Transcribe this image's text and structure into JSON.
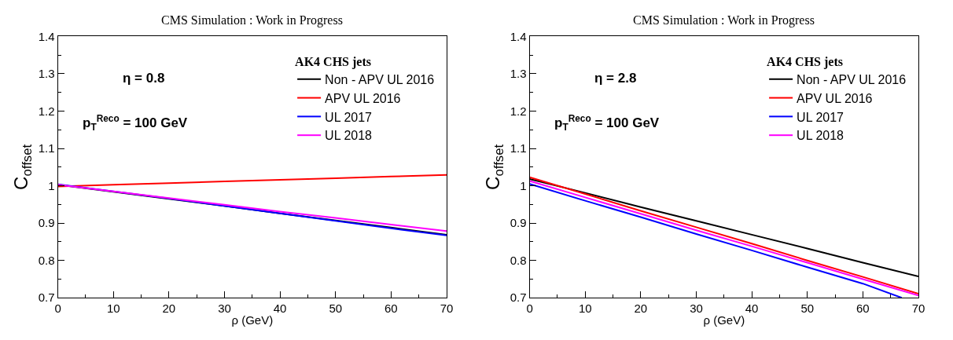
{
  "chart_data": [
    {
      "type": "line",
      "title": "CMS Simulation : Work in Progress",
      "xlabel": "ρ (GeV)",
      "ylabel": "C$_{offset}$",
      "legend_title": "AK4 CHS jets",
      "legend": "top right",
      "annotations": [
        "η = 0.8",
        "p$_{T}$$^{Reco}$ = 100 GeV"
      ],
      "x": [
        0,
        10,
        20,
        30,
        40,
        50,
        60,
        70
      ],
      "series": [
        {
          "name": "Non - APV UL 2016",
          "color": "#000000",
          "values": [
            1.003,
            0.984,
            0.965,
            0.946,
            0.926,
            0.907,
            0.888,
            0.869
          ]
        },
        {
          "name": "APV UL 2016",
          "color": "#ff0000",
          "values": [
            0.998,
            1.003,
            1.007,
            1.012,
            1.016,
            1.02,
            1.025,
            1.029
          ]
        },
        {
          "name": "UL 2017",
          "color": "#0000ff",
          "values": [
            1.004,
            0.985,
            0.966,
            0.946,
            0.926,
            0.906,
            0.886,
            0.867
          ]
        },
        {
          "name": "UL 2018",
          "color": "#ff00ff",
          "values": [
            1.003,
            0.985,
            0.967,
            0.949,
            0.931,
            0.914,
            0.896,
            0.879
          ]
        }
      ],
      "xlim": [
        0,
        70
      ],
      "ylim": [
        0.7,
        1.4
      ],
      "xticks": [
        0,
        10,
        20,
        30,
        40,
        50,
        60,
        70
      ],
      "yticks": [
        0.7,
        0.8,
        0.9,
        1,
        1.1,
        1.2,
        1.3,
        1.4
      ]
    },
    {
      "type": "line",
      "title": "CMS Simulation : Work in Progress",
      "xlabel": "ρ (GeV)",
      "ylabel": "C$_{offset}$",
      "legend_title": "AK4 CHS jets",
      "legend": "top right",
      "annotations": [
        "η = 2.8",
        "p$_{T}$$^{Reco}$ = 100 GeV"
      ],
      "x": [
        0,
        10,
        20,
        30,
        40,
        50,
        60,
        70
      ],
      "series": [
        {
          "name": "Non - APV UL 2016",
          "color": "#000000",
          "values": [
            1.018,
            0.981,
            0.943,
            0.906,
            0.869,
            0.832,
            0.794,
            0.757
          ]
        },
        {
          "name": "APV UL 2016",
          "color": "#ff0000",
          "values": [
            1.023,
            0.978,
            0.933,
            0.889,
            0.845,
            0.8,
            0.756,
            0.711
          ]
        },
        {
          "name": "UL 2017",
          "color": "#0000ff",
          "x": [
            0,
            10,
            20,
            30,
            40,
            50,
            60,
            67
          ],
          "values": [
            1.005,
            0.96,
            0.916,
            0.871,
            0.827,
            0.782,
            0.738,
            0.7
          ]
        },
        {
          "name": "UL 2018",
          "color": "#ff00ff",
          "values": [
            1.013,
            0.969,
            0.925,
            0.881,
            0.838,
            0.794,
            0.75,
            0.706
          ]
        }
      ],
      "xlim": [
        0,
        70
      ],
      "ylim": [
        0.7,
        1.4
      ],
      "xticks": [
        0,
        10,
        20,
        30,
        40,
        50,
        60,
        70
      ],
      "yticks": [
        0.7,
        0.8,
        0.9,
        1,
        1.1,
        1.2,
        1.3,
        1.4
      ]
    }
  ]
}
